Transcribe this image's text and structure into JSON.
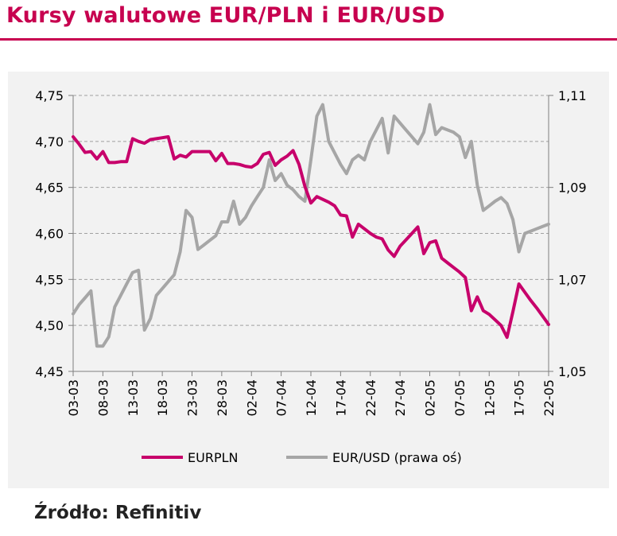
{
  "title": "Kursy walutowe EUR/PLN i EUR/USD",
  "source": "Źródło: Refinitiv",
  "colors": {
    "accent": "#c7004f",
    "eurpln": "#c7006b",
    "eurusd": "#a6a6a6",
    "panel": "#f2f2f2",
    "grid": "#a0a0a0"
  },
  "chart_data": {
    "type": "line",
    "x_tick_labels": [
      "03-03",
      "08-03",
      "13-03",
      "18-03",
      "23-03",
      "28-03",
      "02-04",
      "07-04",
      "12-04",
      "17-04",
      "22-04",
      "27-04",
      "02-05",
      "07-05",
      "12-05",
      "17-05",
      "22-05"
    ],
    "y_left": {
      "ticks": [
        "4,75",
        "4,70",
        "4,65",
        "4,60",
        "4,55",
        "4,50",
        "4,45"
      ],
      "ylim": [
        4.45,
        4.75
      ]
    },
    "y_right": {
      "ticks": [
        "1,11",
        "1,09",
        "1,07",
        "1,05"
      ],
      "ylim": [
        1.05,
        1.11
      ]
    },
    "grid": "horizontal dashed",
    "legend_position": "bottom",
    "series": [
      {
        "name": "EURPLN",
        "axis": "left",
        "x": [
          0,
          1,
          2,
          3,
          4,
          5,
          6,
          7,
          8,
          9,
          10,
          11,
          12,
          13,
          14,
          15,
          16,
          17,
          18,
          19,
          20,
          21,
          22,
          23,
          24,
          25,
          26,
          27,
          28,
          29,
          30,
          31,
          32,
          33,
          34,
          35,
          36,
          37,
          38,
          39,
          40,
          41,
          42,
          43,
          44,
          45,
          46,
          47,
          48,
          49,
          50,
          51,
          52,
          53,
          54,
          55,
          56,
          57,
          58,
          59,
          60,
          61,
          62,
          63,
          64,
          65,
          66,
          67,
          68,
          69,
          70,
          71,
          72,
          73,
          74,
          75,
          76,
          77,
          78,
          79,
          80
        ],
        "values": [
          4.705,
          4.697,
          4.688,
          4.689,
          4.681,
          4.689,
          4.677,
          4.677,
          4.678,
          4.678,
          4.703,
          4.7,
          4.698,
          4.702,
          4.703,
          4.704,
          4.705,
          4.681,
          4.685,
          4.683,
          4.689,
          4.689,
          4.689,
          4.689,
          4.679,
          4.687,
          4.676,
          4.676,
          4.675,
          4.673,
          4.672,
          4.676,
          4.686,
          4.688,
          4.674,
          4.68,
          4.684,
          4.69,
          4.675,
          4.651,
          4.633,
          4.64,
          4.637,
          4.634,
          4.63,
          4.62,
          4.619,
          4.596,
          4.61,
          4.605,
          4.6,
          4.596,
          4.594,
          4.582,
          4.575,
          4.586,
          4.593,
          4.6,
          4.607,
          4.578,
          4.59,
          4.592,
          4.573,
          4.568,
          4.563,
          4.558,
          4.552,
          4.516,
          4.531,
          4.516,
          4.512,
          4.506,
          4.5,
          4.487,
          4.515,
          4.545,
          4.536,
          4.527,
          4.519,
          4.51,
          4.501
        ]
      },
      {
        "name": "EUR/USD (prawa oś)",
        "axis": "right",
        "x": [
          0,
          1,
          2,
          3,
          4,
          5,
          6,
          7,
          8,
          9,
          10,
          11,
          12,
          13,
          14,
          15,
          16,
          17,
          18,
          19,
          20,
          21,
          22,
          23,
          24,
          25,
          26,
          27,
          28,
          29,
          30,
          31,
          32,
          33,
          34,
          35,
          36,
          37,
          38,
          39,
          40,
          41,
          42,
          43,
          44,
          45,
          46,
          47,
          48,
          49,
          50,
          51,
          52,
          53,
          54,
          55,
          56,
          57,
          58,
          59,
          60,
          61,
          62,
          63,
          64,
          65,
          66,
          67,
          68,
          69,
          70,
          71,
          72,
          73,
          74,
          75,
          76,
          77,
          78,
          79,
          80
        ],
        "values": [
          1.0625,
          1.0645,
          1.066,
          1.0675,
          1.0555,
          1.0555,
          1.0575,
          1.064,
          1.0665,
          1.069,
          1.0715,
          1.072,
          1.059,
          1.0615,
          1.0665,
          1.068,
          1.0695,
          1.071,
          1.076,
          1.085,
          1.0835,
          1.0765,
          1.0775,
          1.0785,
          1.0795,
          1.0825,
          1.0825,
          1.087,
          1.082,
          1.0835,
          1.086,
          1.088,
          1.09,
          1.096,
          1.0915,
          1.093,
          1.0905,
          1.0895,
          1.088,
          1.087,
          1.096,
          1.1055,
          1.108,
          1.1,
          1.0975,
          1.095,
          1.093,
          1.096,
          1.097,
          1.096,
          1.1,
          1.1025,
          1.105,
          1.0975,
          1.1055,
          1.104,
          1.1025,
          1.101,
          1.0995,
          1.102,
          1.108,
          1.1015,
          1.103,
          1.1025,
          1.102,
          1.101,
          1.0965,
          1.1,
          1.0905,
          1.085,
          1.086,
          1.087,
          1.0878,
          1.0865,
          1.083,
          1.076,
          1.08,
          1.0805,
          1.081,
          1.0815,
          1.082
        ]
      }
    ]
  }
}
